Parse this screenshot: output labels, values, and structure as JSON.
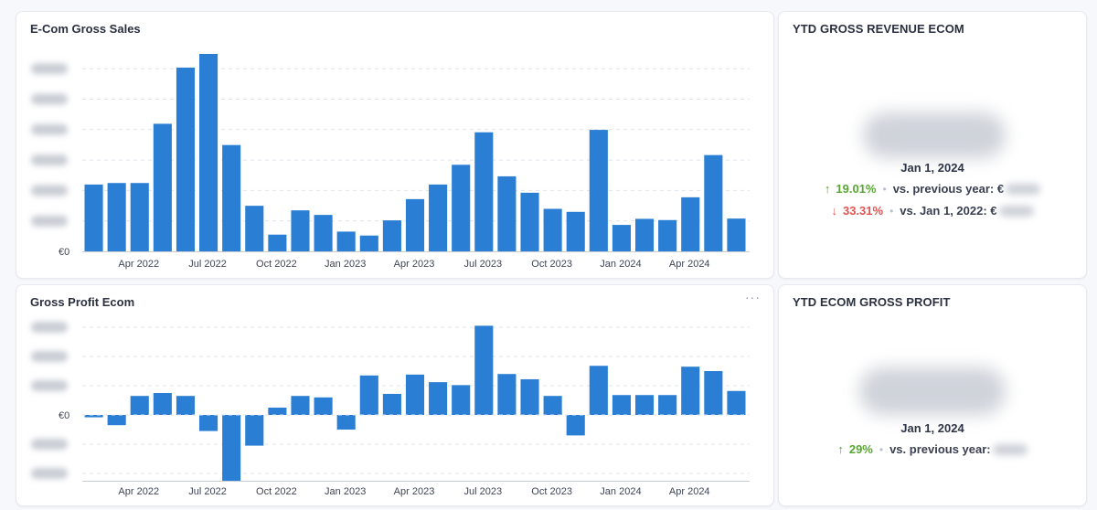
{
  "cards": {
    "sales": {
      "title": "E-Com Gross Sales",
      "chart_data": {
        "type": "bar",
        "title": "E-Com Gross Sales",
        "x_tick_labels": [
          "Apr 2022",
          "Jul 2022",
          "Oct 2022",
          "Jan 2023",
          "Apr 2023",
          "Jul 2023",
          "Oct 2023",
          "Jan 2024",
          "Apr 2024"
        ],
        "y_tick_labels": [
          "€0"
        ],
        "y_tick_count": 7,
        "values": [
          2.2,
          2.25,
          2.25,
          4.2,
          6.05,
          6.5,
          3.5,
          1.5,
          0.55,
          1.35,
          1.2,
          0.65,
          0.52,
          1.02,
          1.72,
          2.2,
          2.85,
          3.92,
          2.47,
          1.93,
          1.4,
          1.3,
          4.0,
          0.87,
          1.07,
          1.03,
          1.78,
          3.17,
          1.08
        ],
        "ylim": [
          0,
          6.5
        ],
        "grid": true,
        "bar_color": "#2a7fd4"
      }
    },
    "profit": {
      "title": "Gross Profit Ecom",
      "more_label": "···",
      "chart_data": {
        "type": "bar",
        "title": "Gross Profit Ecom",
        "x_tick_labels": [
          "Apr 2022",
          "Jul 2022",
          "Oct 2022",
          "Jan 2023",
          "Apr 2023",
          "Jul 2023",
          "Oct 2023",
          "Jan 2024",
          "Apr 2024"
        ],
        "y_tick_labels": [
          "€0"
        ],
        "y_tick_count": 6,
        "values": [
          -0.08,
          -0.35,
          0.65,
          0.75,
          0.65,
          -0.55,
          -2.25,
          -1.05,
          0.25,
          0.65,
          0.6,
          -0.5,
          1.35,
          0.72,
          1.38,
          1.12,
          1.02,
          3.05,
          1.4,
          1.22,
          0.65,
          -0.7,
          1.68,
          0.68,
          0.68,
          0.68,
          1.65,
          1.5,
          0.82
        ],
        "ylim": [
          -2.25,
          3.0
        ],
        "grid": true,
        "bar_color": "#2a7fd4"
      }
    },
    "ytd_revenue": {
      "title": "YTD GROSS REVENUE ECOM",
      "date": "Jan 1, 2024",
      "comparisons": [
        {
          "direction": "up",
          "pct": "19.01%",
          "label": "vs. previous year: €"
        },
        {
          "direction": "down",
          "pct": "33.31%",
          "label": "vs. Jan 1, 2022: €"
        }
      ]
    },
    "ytd_profit": {
      "title": "YTD ECOM GROSS PROFIT",
      "date": "Jan 1, 2024",
      "comparisons": [
        {
          "direction": "up",
          "pct": "29%",
          "label": "vs. previous year:"
        }
      ]
    }
  },
  "colors": {
    "bar": "#2a7fd4",
    "up": "#58a632",
    "down": "#e15451",
    "grid": "#dfe3ea"
  }
}
